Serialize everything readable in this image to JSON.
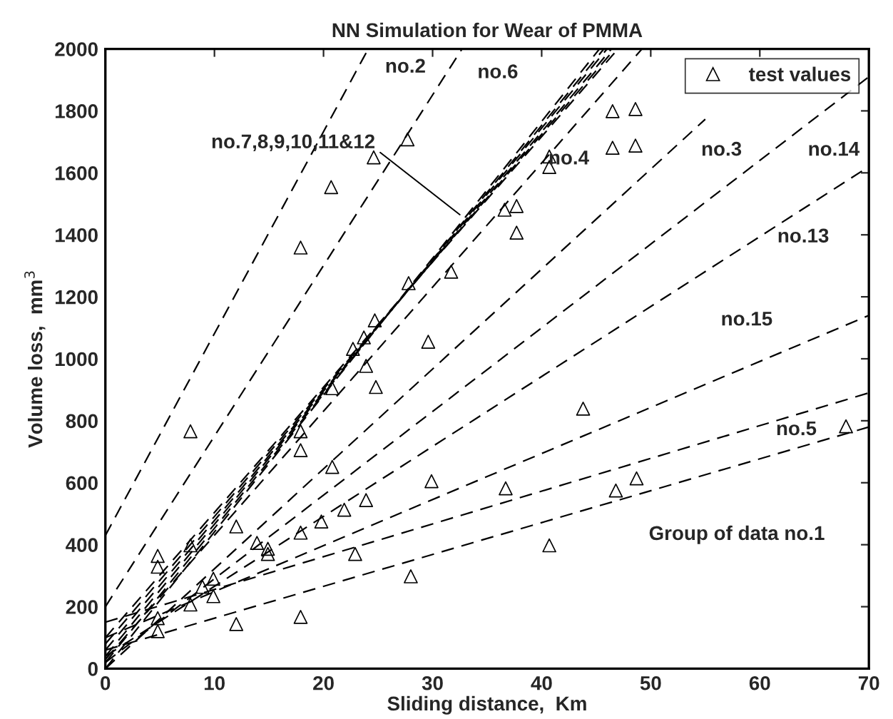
{
  "chart_data": {
    "type": "line",
    "title": "NN Simulation for Wear of PMMA",
    "xlabel": "Sliding distance,  Km",
    "ylabel": "Volume loss,  mm$^{3}$",
    "xlim": [
      0,
      70
    ],
    "ylim": [
      0,
      2000
    ],
    "xticks": [
      0,
      10,
      20,
      30,
      40,
      50,
      60,
      70
    ],
    "yticks": [
      0,
      200,
      400,
      600,
      800,
      1000,
      1200,
      1400,
      1600,
      1800,
      2000
    ],
    "grid": false,
    "legend": "top right",
    "line_style": "dashed",
    "series": [
      {
        "color": "#000000",
        "x": [
          0,
          24.1
        ],
        "values": [
          430,
          2000
        ]
      },
      {
        "color": "#000000",
        "x": [
          0,
          32.7
        ],
        "values": [
          200,
          2000
        ]
      },
      {
        "color": "#000000",
        "x": [
          0,
          45.3
        ],
        "values": [
          0,
          2000
        ]
      },
      {
        "color": "#000000",
        "x": [
          0,
          45.7
        ],
        "values": [
          20,
          2000
        ]
      },
      {
        "color": "#000000",
        "x": [
          0,
          46.0
        ],
        "values": [
          40,
          2000
        ]
      },
      {
        "color": "#000000",
        "x": [
          0,
          46.4
        ],
        "values": [
          60,
          2000
        ]
      },
      {
        "color": "#000000",
        "x": [
          0,
          46.7
        ],
        "values": [
          80,
          2000
        ]
      },
      {
        "color": "#000000",
        "x": [
          0,
          47.0
        ],
        "values": [
          100,
          2000
        ]
      },
      {
        "color": "#000000",
        "x": [
          0,
          49.2
        ],
        "values": [
          30,
          2000
        ]
      },
      {
        "color": "#000000",
        "x": [
          0,
          55
        ],
        "values": [
          0,
          1773
        ]
      },
      {
        "color": "#000000",
        "x": [
          0,
          70
        ],
        "values": [
          20,
          1910
        ]
      },
      {
        "color": "#000000",
        "x": [
          0,
          70
        ],
        "values": [
          40,
          1620
        ]
      },
      {
        "color": "#000000",
        "x": [
          0,
          70
        ],
        "values": [
          100,
          1140
        ]
      },
      {
        "color": "#000000",
        "x": [
          0,
          70
        ],
        "values": [
          150,
          890
        ]
      },
      {
        "color": "#000000",
        "x": [
          0,
          70
        ],
        "values": [
          60,
          780
        ]
      },
      {
        "type": "scatter",
        "name": "test values",
        "color": "#000000",
        "marker": "triangle",
        "x": [
          7.8,
          4.8,
          4.8,
          4.8,
          4.8,
          7.8,
          7.8,
          8.9,
          9.9,
          9.9,
          12,
          12,
          13.9,
          14.9,
          14.9,
          17.9,
          17.9,
          17.9,
          17.9,
          19.8,
          20.8,
          20.8,
          21.9,
          22.9,
          23.9,
          23.9,
          24.8,
          28,
          29.9,
          22.7,
          17.9,
          20.7,
          24.6,
          27.7,
          46.5,
          48.6,
          46.5,
          48.6,
          40.7,
          40.7,
          36.6,
          37.7,
          37.7,
          31.7,
          29.6,
          27.8,
          24.7,
          23.7,
          43.8,
          36.7,
          46.8,
          48.7,
          40.7,
          67.9
        ],
        "values": [
          766,
          364,
          329,
          121,
          163,
          398,
          207,
          264,
          290,
          234,
          144,
          459,
          406,
          387,
          370,
          766,
          705,
          439,
          167,
          475,
          651,
          905,
          513,
          370,
          544,
          977,
          909,
          298,
          605,
          1032,
          1359,
          1554,
          1650,
          1708,
          1799,
          1806,
          1681,
          1688,
          1653,
          1619,
          1481,
          1493,
          1407,
          1281,
          1055,
          1244,
          1124,
          1069,
          839,
          582,
          575,
          614,
          398,
          782
        ]
      }
    ],
    "annotations": [
      "no.2",
      "no.6",
      {
        "text": "no.7,8,9,10,11&12",
        "x": 32.5,
        "y": 1465
      },
      "no.4",
      "no.3",
      "no.14",
      "no.13",
      "no.15",
      "no.5",
      "Group of data no.1"
    ]
  }
}
